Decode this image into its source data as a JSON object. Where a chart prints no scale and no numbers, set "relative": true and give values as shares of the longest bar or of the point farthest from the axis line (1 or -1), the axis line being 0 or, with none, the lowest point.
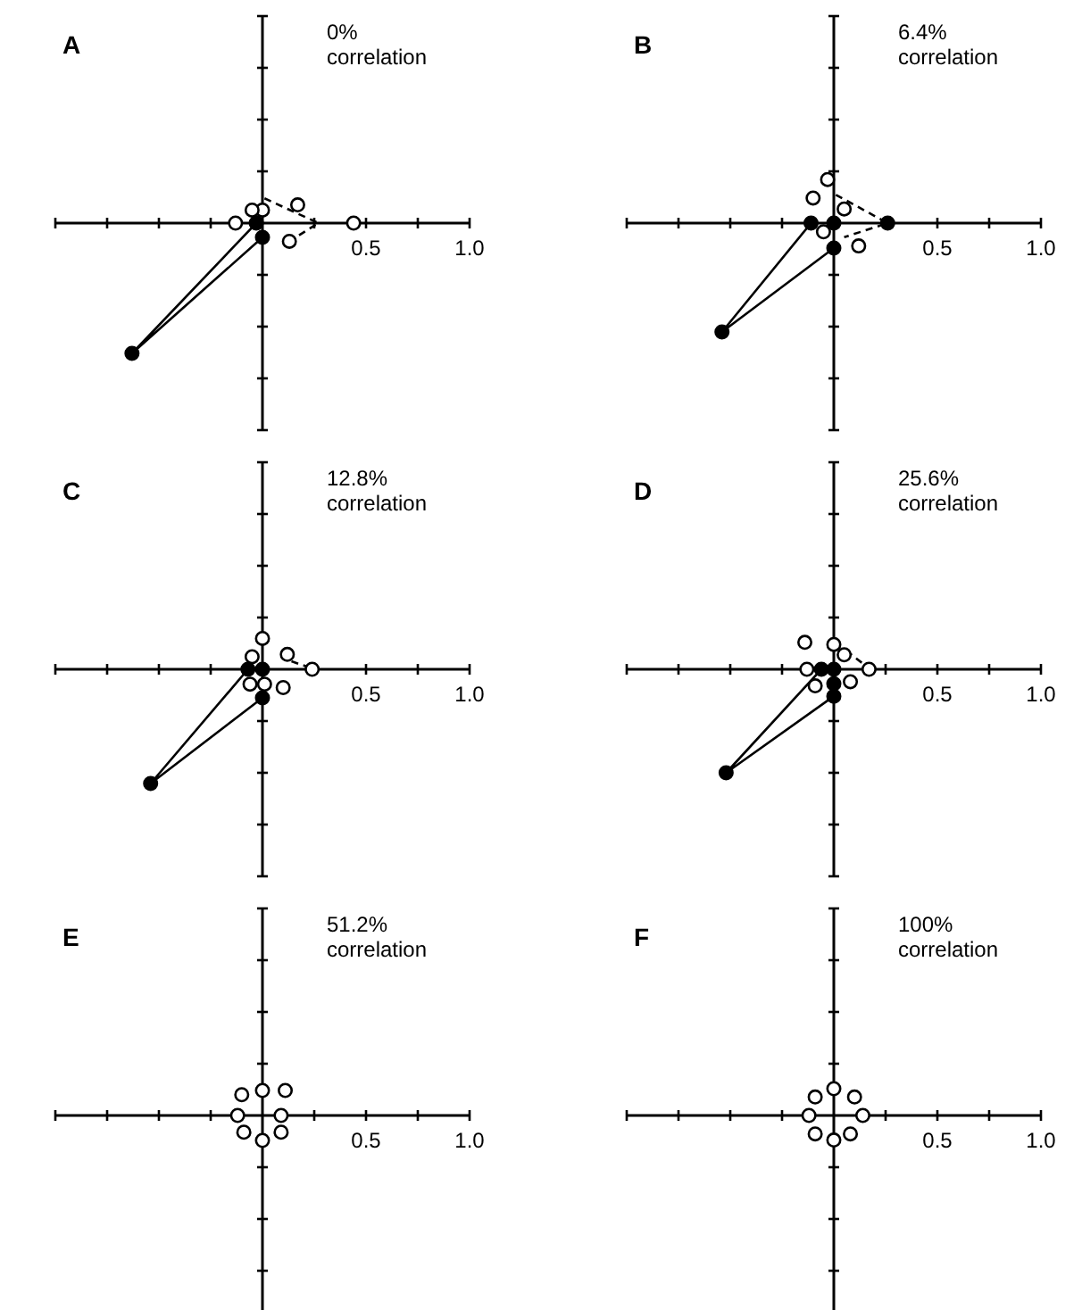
{
  "chart_data": [
    {
      "type": "scatter",
      "title": "A",
      "subtitle": "0% correlation",
      "xlim": [
        -1,
        1
      ],
      "tick_labels": "x",
      "relative": true,
      "xticks": [
        {
          "value": -1,
          "label": null
        },
        {
          "value": -0.75,
          "label": null
        },
        {
          "value": -0.5,
          "label": null
        },
        {
          "value": -0.25,
          "label": null
        },
        {
          "value": 0.25,
          "label": null
        },
        {
          "value": 0.5,
          "label": "0.5"
        },
        {
          "value": 0.75,
          "label": null
        },
        {
          "value": 1,
          "label": "1.0"
        }
      ],
      "series": [
        {
          "type": "line",
          "line_style": "solid",
          "marker": "none",
          "color": "#000000",
          "x": [
            -0.03,
            -0.63,
            0
          ],
          "values": [
            0,
            -1,
            -0.11
          ]
        },
        {
          "type": "line",
          "line_style": "dashed",
          "marker": "none",
          "color": "#000000",
          "x": [
            0.01,
            0.27,
            0.13
          ],
          "values": [
            0.19,
            0,
            -0.14
          ]
        },
        {
          "type": "scatter",
          "marker": "circle",
          "color": "#ffffff",
          "x": [
            -0.13,
            0.44,
            0,
            -0.05,
            0.17,
            0.13
          ],
          "values": [
            0,
            0,
            0.1,
            0.1,
            0.14,
            -0.14
          ]
        },
        {
          "type": "scatter",
          "marker": "circle",
          "color": "#000000",
          "x": [
            -0.63,
            0,
            -0.03
          ],
          "values": [
            -1,
            -0.11,
            0
          ]
        }
      ]
    },
    {
      "type": "scatter",
      "title": "B",
      "subtitle": "6.4% correlation",
      "xlim": [
        -1,
        1
      ],
      "tick_labels": "x",
      "relative": true,
      "xticks": [
        {
          "value": -1,
          "label": null
        },
        {
          "value": -0.75,
          "label": null
        },
        {
          "value": -0.5,
          "label": null
        },
        {
          "value": -0.25,
          "label": null
        },
        {
          "value": 0.25,
          "label": null
        },
        {
          "value": 0.5,
          "label": "0.5"
        },
        {
          "value": 0.75,
          "label": null
        },
        {
          "value": 1,
          "label": "1.0"
        }
      ],
      "series": [
        {
          "type": "line",
          "line_style": "solid",
          "marker": "none",
          "color": "#000000",
          "x": [
            -0.11,
            -0.54,
            0
          ],
          "values": [
            0,
            -1,
            -0.23
          ]
        },
        {
          "type": "line",
          "line_style": "dashed",
          "marker": "none",
          "color": "#000000",
          "x": [
            0.01,
            0.26,
            0.05
          ],
          "values": [
            0.26,
            0,
            -0.13
          ]
        },
        {
          "type": "scatter",
          "marker": "circle",
          "color": "#ffffff",
          "x": [
            -0.03,
            -0.1,
            0.05,
            -0.05,
            0.12
          ],
          "values": [
            0.4,
            0.23,
            0.13,
            -0.08,
            -0.21
          ]
        },
        {
          "type": "scatter",
          "marker": "circle",
          "color": "#000000",
          "x": [
            -0.54,
            0.26,
            0,
            -0.11,
            0
          ],
          "values": [
            -1,
            0,
            -0.23,
            0,
            0
          ]
        }
      ]
    },
    {
      "type": "scatter",
      "title": "C",
      "subtitle": "12.8% correlation",
      "xlim": [
        -1,
        1
      ],
      "tick_labels": "x",
      "relative": true,
      "xticks": [
        {
          "value": -1,
          "label": null
        },
        {
          "value": -0.75,
          "label": null
        },
        {
          "value": -0.5,
          "label": null
        },
        {
          "value": -0.25,
          "label": null
        },
        {
          "value": 0.25,
          "label": null
        },
        {
          "value": 0.5,
          "label": "0.5"
        },
        {
          "value": 0.75,
          "label": null
        },
        {
          "value": 1,
          "label": "1.0"
        }
      ],
      "series": [
        {
          "type": "line",
          "line_style": "solid",
          "marker": "none",
          "color": "#000000",
          "x": [
            -0.07,
            -0.54,
            0
          ],
          "values": [
            0,
            -1,
            -0.25
          ]
        },
        {
          "type": "line",
          "line_style": "dashed",
          "marker": "none",
          "color": "#000000",
          "x": [
            0.14,
            0.22
          ],
          "values": [
            0.07,
            0.02
          ]
        },
        {
          "type": "scatter",
          "marker": "circle",
          "color": "#ffffff",
          "x": [
            0,
            0.12,
            0.24,
            0.1,
            -0.06,
            0.01,
            -0.05
          ],
          "values": [
            0.27,
            0.13,
            0,
            -0.16,
            -0.13,
            -0.13,
            0.11
          ]
        },
        {
          "type": "scatter",
          "marker": "circle",
          "color": "#000000",
          "x": [
            -0.54,
            0,
            -0.07,
            0
          ],
          "values": [
            -1,
            -0.25,
            0,
            0
          ]
        }
      ]
    },
    {
      "type": "scatter",
      "title": "D",
      "subtitle": "25.6% correlation",
      "xlim": [
        -1,
        1
      ],
      "tick_labels": "x",
      "relative": true,
      "xticks": [
        {
          "value": -1,
          "label": null
        },
        {
          "value": -0.75,
          "label": null
        },
        {
          "value": -0.5,
          "label": null
        },
        {
          "value": -0.25,
          "label": null
        },
        {
          "value": 0.25,
          "label": null
        },
        {
          "value": 0.5,
          "label": "0.5"
        },
        {
          "value": 0.75,
          "label": null
        },
        {
          "value": 1,
          "label": "1.0"
        }
      ],
      "series": [
        {
          "type": "line",
          "line_style": "solid",
          "marker": "none",
          "color": "#000000",
          "x": [
            -0.06,
            -0.52,
            0
          ],
          "values": [
            0,
            -1,
            -0.26
          ]
        },
        {
          "type": "line",
          "line_style": "dashed",
          "marker": "none",
          "color": "#000000",
          "x": [
            0.06,
            0.15
          ],
          "values": [
            0.18,
            0.04
          ]
        },
        {
          "type": "scatter",
          "marker": "circle",
          "color": "#ffffff",
          "x": [
            -0.14,
            0,
            0.05,
            0.17,
            0.08,
            -0.09,
            -0.13
          ],
          "values": [
            0.26,
            0.24,
            0.14,
            0,
            -0.12,
            -0.16,
            0
          ]
        },
        {
          "type": "scatter",
          "marker": "circle",
          "color": "#000000",
          "x": [
            -0.52,
            0,
            -0.06,
            0,
            0
          ],
          "values": [
            -1,
            -0.26,
            0,
            0,
            -0.14
          ]
        }
      ]
    },
    {
      "type": "scatter",
      "title": "E",
      "subtitle": "51.2% correlation",
      "xlim": [
        -1,
        1
      ],
      "tick_labels": "x",
      "relative": true,
      "xticks": [
        {
          "value": -1,
          "label": null
        },
        {
          "value": -0.75,
          "label": null
        },
        {
          "value": -0.5,
          "label": null
        },
        {
          "value": -0.25,
          "label": null
        },
        {
          "value": 0.25,
          "label": null
        },
        {
          "value": 0.5,
          "label": "0.5"
        },
        {
          "value": 0.75,
          "label": null
        },
        {
          "value": 1,
          "label": "1.0"
        }
      ],
      "series": [
        {
          "type": "scatter",
          "marker": "circle",
          "color": "#ffffff",
          "x": [
            0,
            0.11,
            0.09,
            0.09,
            0,
            -0.09,
            -0.12,
            -0.1
          ],
          "values": [
            1,
            1,
            0,
            -0.67,
            -1,
            -0.67,
            0,
            0.83
          ]
        }
      ]
    },
    {
      "type": "scatter",
      "title": "F",
      "subtitle": "100% correlation",
      "xlim": [
        -1,
        1
      ],
      "tick_labels": "x",
      "relative": true,
      "xticks": [
        {
          "value": -1,
          "label": null
        },
        {
          "value": -0.75,
          "label": null
        },
        {
          "value": -0.5,
          "label": null
        },
        {
          "value": -0.25,
          "label": null
        },
        {
          "value": 0.25,
          "label": null
        },
        {
          "value": 0.5,
          "label": "0.5"
        },
        {
          "value": 0.75,
          "label": null
        },
        {
          "value": 1,
          "label": "1.0"
        }
      ],
      "series": [
        {
          "type": "scatter",
          "marker": "circle",
          "color": "#ffffff",
          "x": [
            0,
            0.1,
            0.14,
            0.08,
            0,
            -0.09,
            -0.12,
            -0.09
          ],
          "values": [
            1,
            0.69,
            0,
            -0.69,
            -0.92,
            -0.69,
            0,
            0.69
          ]
        }
      ]
    }
  ]
}
